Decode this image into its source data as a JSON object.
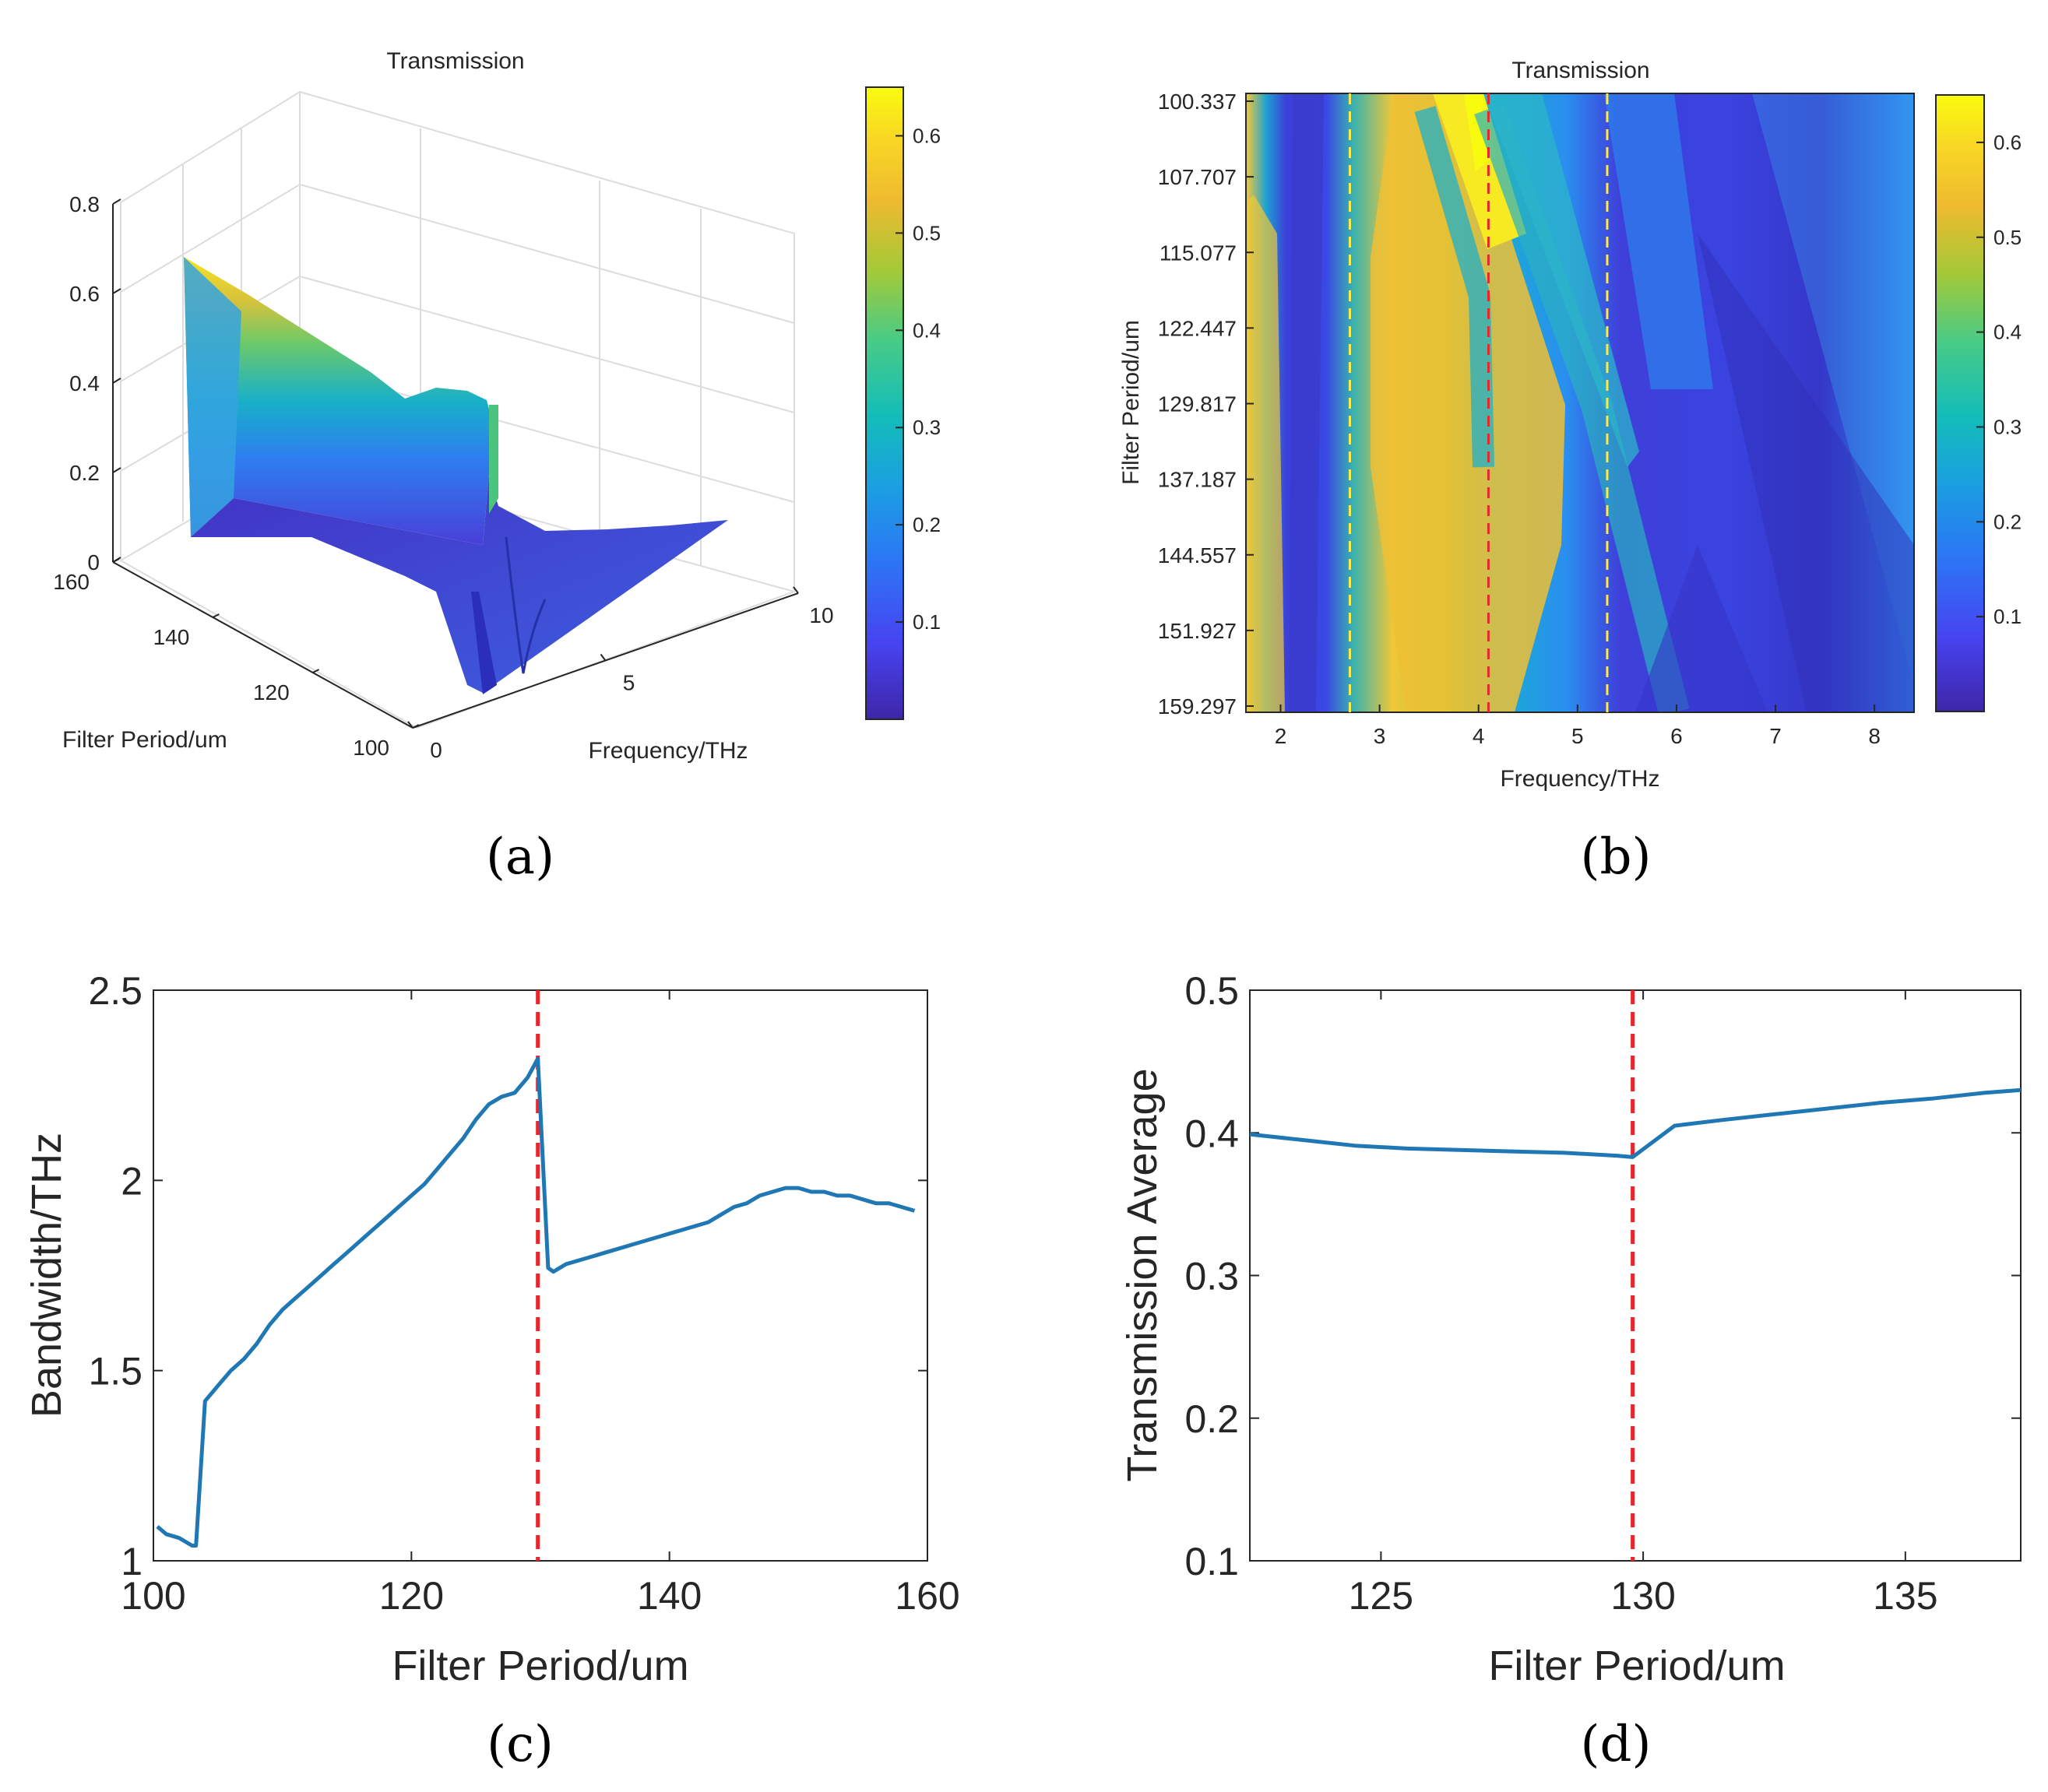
{
  "figure": {
    "captions": [
      "(a)",
      "(b)",
      "(c)",
      "(d)"
    ]
  },
  "chart_data": [
    {
      "id": "a",
      "type": "surface3d",
      "title": "Transmission",
      "xlabel": "Frequency/THz",
      "ylabel": "Filter Period/um",
      "zlabel": "",
      "x_ticks": [
        "0",
        "5",
        "10"
      ],
      "y_ticks": [
        "100",
        "120",
        "140",
        "160"
      ],
      "z_ticks": [
        "0",
        "0.2",
        "0.4",
        "0.6",
        "0.8"
      ],
      "xlim": [
        0,
        10
      ],
      "ylim": [
        100,
        160
      ],
      "zlim": [
        0,
        0.8
      ],
      "colorbar": {
        "ticks": [
          "0.1",
          "0.2",
          "0.3",
          "0.4",
          "0.5",
          "0.6"
        ],
        "range": [
          0,
          0.65
        ]
      },
      "colormap": [
        "#3e26a8",
        "#4743f0",
        "#2c76f5",
        "#1aa0e0",
        "#13bdb9",
        "#48cb86",
        "#a4c937",
        "#efba2f",
        "#f8d824",
        "#f9fb0e"
      ],
      "back_profile_period_160": {
        "x": [
          0,
          0.5,
          1,
          1.5,
          2,
          2.5,
          3,
          3.3,
          3.5,
          4,
          5,
          6,
          7,
          8,
          9,
          10
        ],
        "z": [
          0.68,
          0.56,
          0.45,
          0.38,
          0.46,
          0.51,
          0.5,
          0.4,
          0.05,
          0.03,
          0.02,
          0.02,
          0.03,
          0.04,
          0.05,
          0.07
        ]
      },
      "front_profile_period_100": {
        "x": [
          0,
          1,
          2,
          3,
          3.5,
          4,
          4.3,
          5,
          6,
          8,
          10
        ],
        "z": [
          0.0,
          0.0,
          0.0,
          0.0,
          0.0,
          0.01,
          0.2,
          0.02,
          0.01,
          0.02,
          0.06
        ]
      }
    },
    {
      "id": "b",
      "type": "heatmap",
      "title": "Transmission",
      "xlabel": "Frequency/THz",
      "ylabel": "Filter Period/um",
      "x_ticks": [
        "2",
        "3",
        "4",
        "5",
        "6",
        "7",
        "8"
      ],
      "y_ticks": [
        "100.337",
        "107.707",
        "115.077",
        "122.447",
        "129.817",
        "137.187",
        "144.557",
        "151.927",
        "159.297"
      ],
      "xlim": [
        1.65,
        8.4
      ],
      "ylim": [
        100.337,
        159.297
      ],
      "colorbar": {
        "ticks": [
          "0.1",
          "0.2",
          "0.3",
          "0.4",
          "0.5",
          "0.6"
        ],
        "range": [
          0,
          0.65
        ]
      },
      "reference_lines": [
        {
          "x": 2.7,
          "color": "#ffe84a",
          "style": "dashed"
        },
        {
          "x": 4.1,
          "color": "#e8262b",
          "style": "dashed"
        },
        {
          "x": 5.3,
          "color": "#ffe84a",
          "style": "dashed"
        }
      ]
    },
    {
      "id": "c",
      "type": "line",
      "xlabel": "Filter Period/um",
      "ylabel": "Bandwidth/THz",
      "xlim": [
        100,
        160
      ],
      "ylim": [
        1,
        2.5
      ],
      "x_ticks": [
        "100",
        "120",
        "140",
        "160"
      ],
      "y_ticks": [
        "1",
        "1.5",
        "2",
        "2.5"
      ],
      "series": [
        {
          "color": "#1f77b4",
          "x": [
            100.3,
            101,
            102,
            103,
            103.3,
            104,
            105,
            106,
            107,
            108,
            109,
            110,
            111,
            112,
            113,
            114,
            115,
            116,
            117,
            118,
            119,
            120,
            121,
            122,
            123,
            124,
            125,
            126,
            127,
            128,
            129,
            129.8,
            130.6,
            131,
            132,
            133,
            134,
            135,
            136,
            137,
            138,
            139,
            140,
            141,
            142,
            143,
            144,
            145,
            146,
            147,
            148,
            149,
            150,
            151,
            152,
            153,
            154,
            155,
            156,
            157,
            158,
            159
          ],
          "y": [
            1.09,
            1.07,
            1.06,
            1.04,
            1.04,
            1.42,
            1.46,
            1.5,
            1.53,
            1.57,
            1.62,
            1.66,
            1.69,
            1.72,
            1.75,
            1.78,
            1.81,
            1.84,
            1.87,
            1.9,
            1.93,
            1.96,
            1.99,
            2.03,
            2.07,
            2.11,
            2.16,
            2.2,
            2.22,
            2.23,
            2.27,
            2.32,
            1.77,
            1.76,
            1.78,
            1.79,
            1.8,
            1.81,
            1.82,
            1.83,
            1.84,
            1.85,
            1.86,
            1.87,
            1.88,
            1.89,
            1.91,
            1.93,
            1.94,
            1.96,
            1.97,
            1.98,
            1.98,
            1.97,
            1.97,
            1.96,
            1.96,
            1.95,
            1.94,
            1.94,
            1.93,
            1.92
          ]
        }
      ],
      "reference_lines": [
        {
          "x": 129.8,
          "color": "#e8262b",
          "style": "dashed"
        }
      ]
    },
    {
      "id": "d",
      "type": "line",
      "xlabel": "Filter Period/um",
      "ylabel": "Transmission Average",
      "xlim": [
        122.5,
        137.2
      ],
      "ylim": [
        0.1,
        0.5
      ],
      "x_ticks": [
        "125",
        "130",
        "135"
      ],
      "y_ticks": [
        "0.1",
        "0.2",
        "0.3",
        "0.4",
        "0.5"
      ],
      "series": [
        {
          "color": "#1f77b4",
          "x": [
            122.5,
            123.5,
            124.5,
            125.5,
            126.5,
            127.5,
            128.5,
            129.5,
            129.8,
            130.6,
            131.5,
            132.5,
            133.5,
            134.5,
            135.5,
            136.5,
            137.2
          ],
          "y": [
            0.399,
            0.395,
            0.391,
            0.389,
            0.388,
            0.387,
            0.386,
            0.384,
            0.383,
            0.405,
            0.409,
            0.413,
            0.417,
            0.421,
            0.424,
            0.428,
            0.43
          ]
        }
      ],
      "reference_lines": [
        {
          "x": 129.8,
          "color": "#e8262b",
          "style": "dashed"
        }
      ]
    }
  ]
}
